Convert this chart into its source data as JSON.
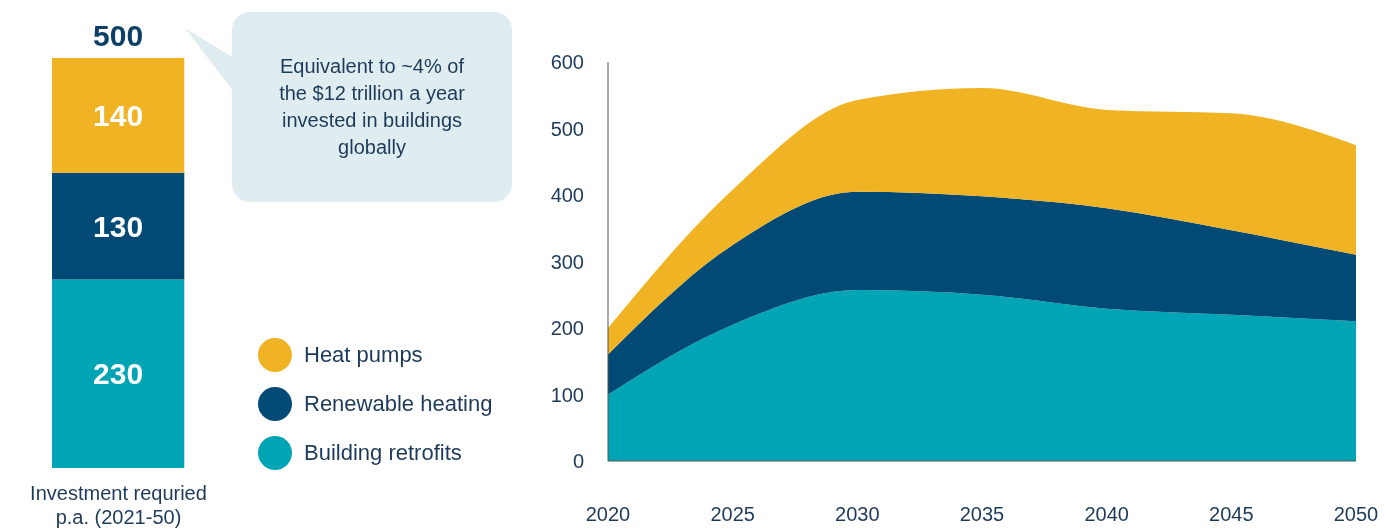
{
  "chart_data": [
    {
      "type": "bar",
      "stacked": true,
      "categories": [
        "Investment requried p.a. (2021-50)"
      ],
      "series": [
        {
          "name": "Building retrofits",
          "color": "#00a5b5",
          "values": [
            230
          ]
        },
        {
          "name": "Renewable heating",
          "color": "#004a75",
          "values": [
            130
          ]
        },
        {
          "name": "Heat pumps",
          "color": "#f0b323",
          "values": [
            140
          ]
        }
      ],
      "data_labels": true,
      "totals": [
        "500"
      ],
      "legend": "right",
      "annotations": [
        "Equivalent to ~4% of the $12 trillion a year invested in buildings globally"
      ]
    },
    {
      "type": "area",
      "stacked": true,
      "x": [
        2020,
        2025,
        2030,
        2035,
        2040,
        2045,
        2050
      ],
      "series": [
        {
          "color": "#00a5b5",
          "values": [
            100,
            205,
            257,
            250,
            229,
            220,
            210
          ]
        },
        {
          "color": "#004a75",
          "values": [
            60,
            120,
            148,
            148,
            151,
            127,
            100
          ]
        },
        {
          "color": "#f0b323",
          "values": [
            40,
            83,
            138,
            163,
            148,
            176,
            165
          ]
        }
      ],
      "xlim": [
        2020,
        2050
      ],
      "xticks": [
        2020,
        2025,
        2030,
        2035,
        2040,
        2045,
        2050
      ],
      "ylim": [
        0,
        600
      ],
      "yticks": [
        0,
        100,
        200,
        300,
        400,
        500,
        600
      ]
    }
  ]
}
